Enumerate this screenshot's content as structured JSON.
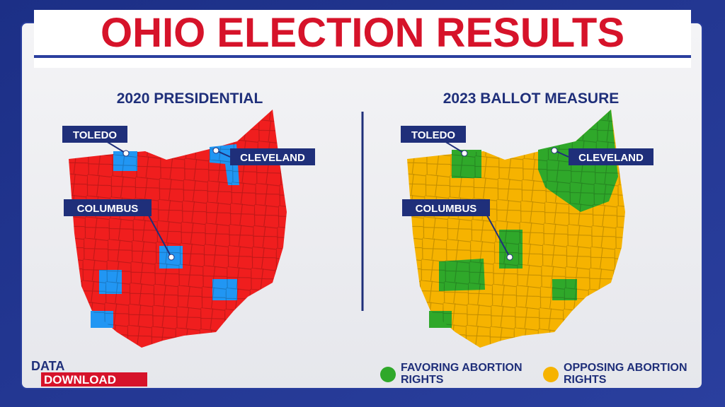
{
  "header": {
    "title": "OHIO ELECTION RESULTS"
  },
  "maps": [
    {
      "title": "2020 PRESIDENTIAL",
      "cities": [
        "TOLEDO",
        "CLEVELAND",
        "COLUMBUS"
      ]
    },
    {
      "title": "2023 BALLOT MEASURE",
      "cities": [
        "TOLEDO",
        "CLEVELAND",
        "COLUMBUS"
      ]
    }
  ],
  "legend": {
    "items": [
      {
        "label": "FAVORING ABORTION RIGHTS"
      },
      {
        "label": "OPPOSING ABORTION RIGHTS"
      }
    ]
  },
  "logo": {
    "line1": "DATA",
    "line2": "DOWNLOAD"
  }
}
